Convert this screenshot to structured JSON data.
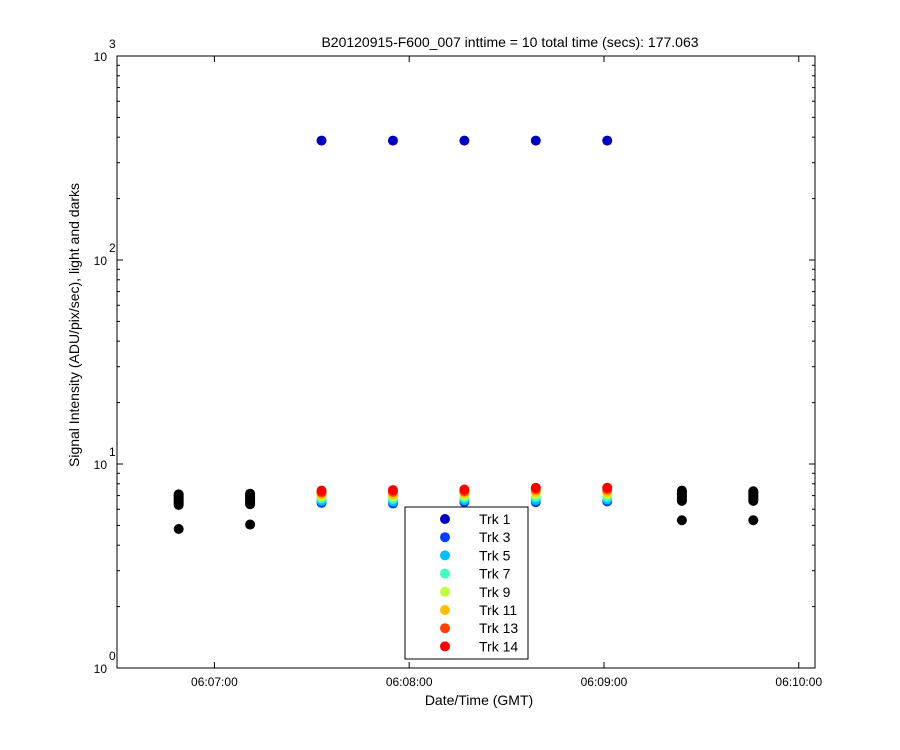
{
  "chart_data": {
    "type": "scatter",
    "title": "B20120915-F600_007 inttime = 10 total time (secs): 177.063",
    "xlabel": "Date/Time (GMT)",
    "ylabel": "Signal Intensity (ADU/pix/sec), light and darks",
    "yscale": "log",
    "ylim": [
      1,
      1000
    ],
    "xlim": [
      "06:06:30",
      "06:10:05"
    ],
    "x_ticks": [
      "06:07:00",
      "06:08:00",
      "06:09:00",
      "06:10:00"
    ],
    "y_ticks": [
      {
        "base": "10",
        "exp": "0"
      },
      {
        "base": "10",
        "exp": "1"
      },
      {
        "base": "10",
        "exp": "2"
      },
      {
        "base": "10",
        "exp": "3"
      }
    ],
    "grid": false,
    "legend_position": "bottom-center",
    "light_times": [
      "06:07:33",
      "06:07:55",
      "06:08:17",
      "06:08:39",
      "06:09:01"
    ],
    "series": [
      {
        "name": "Trk 1",
        "color": "#0000bf",
        "values": [
          385,
          385,
          385,
          385,
          385
        ]
      },
      {
        "name": "Trk 3",
        "color": "#0040ff",
        "values": [
          6.45,
          6.4,
          6.5,
          6.5,
          6.55
        ]
      },
      {
        "name": "Trk 5",
        "color": "#00bfff",
        "values": [
          6.6,
          6.55,
          6.65,
          6.65,
          6.7
        ]
      },
      {
        "name": "Trk 7",
        "color": "#40ffbf",
        "values": [
          6.8,
          6.75,
          6.85,
          6.9,
          6.9
        ]
      },
      {
        "name": "Trk 9",
        "color": "#bfff40",
        "values": [
          6.95,
          6.95,
          7.0,
          7.1,
          7.1
        ]
      },
      {
        "name": "Trk 11",
        "color": "#ffbf00",
        "values": [
          7.1,
          7.1,
          7.2,
          7.3,
          7.3
        ]
      },
      {
        "name": "Trk 13",
        "color": "#ff4000",
        "values": [
          7.25,
          7.3,
          7.35,
          7.5,
          7.5
        ]
      },
      {
        "name": "Trk 14",
        "color": "#ff0000",
        "values": [
          7.4,
          7.45,
          7.5,
          7.65,
          7.65
        ]
      }
    ],
    "darks": {
      "color": "#000000",
      "groups": [
        {
          "time": "06:06:49",
          "values": [
            4.8,
            6.3,
            6.4,
            6.5,
            6.6,
            6.7,
            6.8,
            6.9,
            7.0,
            7.1
          ]
        },
        {
          "time": "06:07:11",
          "values": [
            5.05,
            6.35,
            6.45,
            6.55,
            6.65,
            6.75,
            6.85,
            6.95,
            7.05,
            7.15
          ]
        },
        {
          "time": "06:09:24",
          "values": [
            5.3,
            6.6,
            6.7,
            6.8,
            6.9,
            7.0,
            7.1,
            7.2,
            7.3,
            7.4
          ]
        },
        {
          "time": "06:09:46",
          "values": [
            5.3,
            6.6,
            6.7,
            6.8,
            6.9,
            7.0,
            7.1,
            7.2,
            7.3,
            7.35
          ]
        }
      ]
    }
  }
}
